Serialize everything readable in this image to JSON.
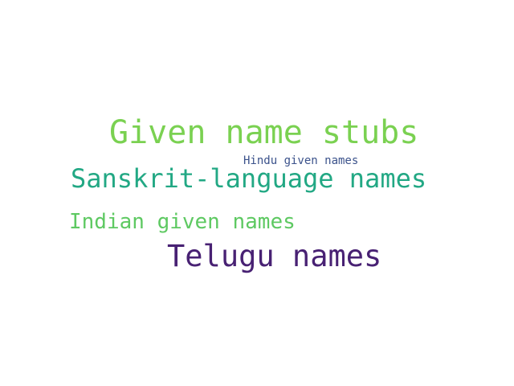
{
  "word_cloud": {
    "words": [
      {
        "text": "Given name stubs",
        "color": "#7ad151"
      },
      {
        "text": "Hindu given names",
        "color": "#3b528b"
      },
      {
        "text": "Sanskrit-language names",
        "color": "#22a884"
      },
      {
        "text": "Indian given names",
        "color": "#5ec962"
      },
      {
        "text": "Telugu names",
        "color": "#482173"
      }
    ]
  }
}
